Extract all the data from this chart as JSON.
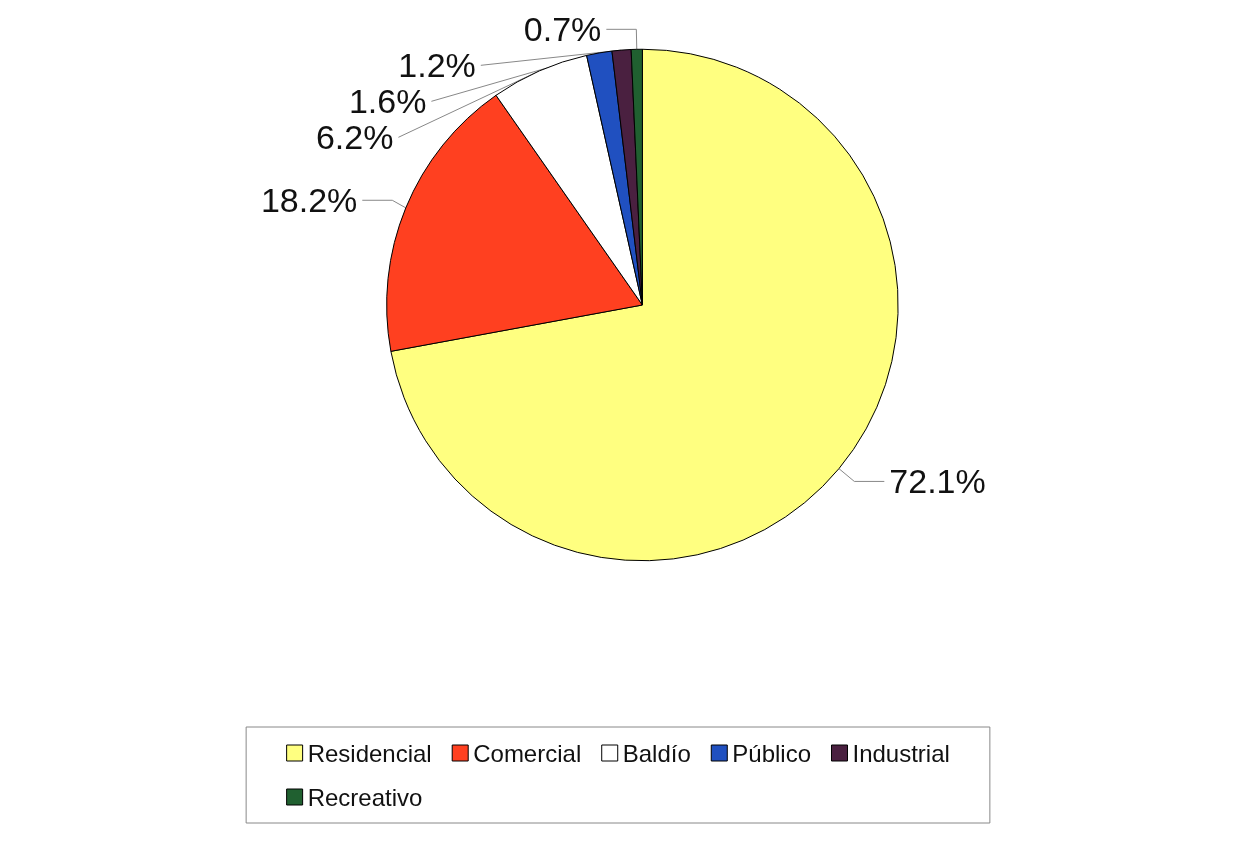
{
  "chart_data": {
    "type": "pie",
    "categories": [
      "Residencial",
      "Comercial",
      "Baldío",
      "Público",
      "Industrial",
      "Recreativo"
    ],
    "values": [
      72.1,
      18.2,
      6.2,
      1.6,
      1.2,
      0.7
    ],
    "colors": [
      "#ffff80",
      "#ff4020",
      "#ffffff",
      "#2050c0",
      "#4a2040",
      "#206030"
    ],
    "value_labels": [
      "72.1%",
      "18.2%",
      "6.2%",
      "1.6%",
      "1.2%",
      "0.7%"
    ],
    "legend": "bottom"
  }
}
